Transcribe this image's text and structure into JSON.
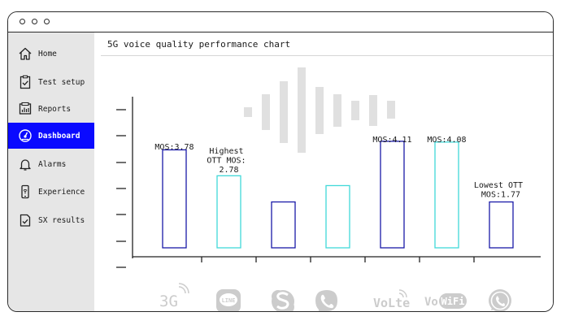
{
  "nav": {
    "items": [
      {
        "label": "Home",
        "icon": "home-icon"
      },
      {
        "label": "Test setup",
        "icon": "checklist-icon"
      },
      {
        "label": "Reports",
        "icon": "report-icon"
      },
      {
        "label": "Dashboard",
        "icon": "gauge-icon",
        "active": true
      },
      {
        "label": "Alarms",
        "icon": "bell-icon"
      },
      {
        "label": "Experience",
        "icon": "phone-wifi-icon"
      },
      {
        "label": "SX results",
        "icon": "results-check-icon"
      }
    ]
  },
  "main": {
    "title": "5G voice quality performance chart"
  },
  "colors": {
    "accent": "#0a0aff",
    "bar_dark": "#1a1aa8",
    "bar_light": "#40d8d8",
    "sidebar_bg": "#e6e6e6",
    "logo_gray": "#cccccc"
  },
  "chart_data": {
    "type": "bar",
    "title": "5G voice quality performance chart",
    "categories": [
      "3G",
      "LINE",
      "Skype",
      "Viber",
      "VoLTE",
      "VoWiFi",
      "WhatsApp"
    ],
    "values": [
      3.78,
      2.78,
      1.77,
      2.4,
      4.11,
      4.08,
      1.77
    ],
    "ylim": [
      0,
      5.8
    ],
    "grid": false,
    "labels": [
      "MOS:3.78",
      "Highest\nOTT MOS:\n2.78",
      "",
      "",
      "MOS:4.11",
      "MOS:4.08",
      "Lowest OTT\nMOS:1.77"
    ],
    "category_logos": [
      "3G-icon",
      "line-logo-icon",
      "skype-logo-icon",
      "viber-logo-icon",
      "volte-logo-icon",
      "vowifi-logo-icon",
      "whatsapp-logo-icon"
    ]
  },
  "logos": {
    "g3": "3G",
    "line": "LINE",
    "volte": "VoLte",
    "vowifi_a": "Vo",
    "vowifi_b": "WiFi"
  }
}
